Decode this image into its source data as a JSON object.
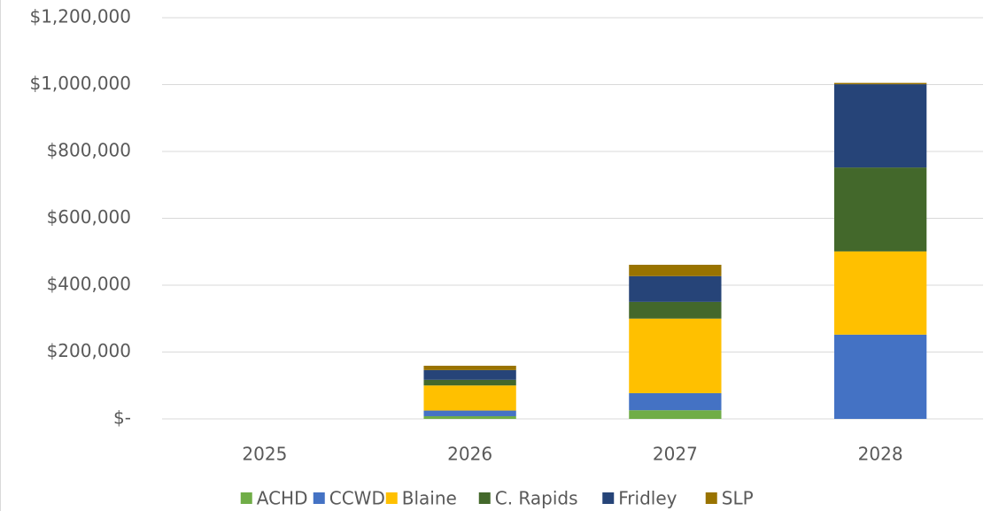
{
  "chart_data": {
    "type": "stacked_bar",
    "categories": [
      "2025",
      "2026",
      "2027",
      "2028"
    ],
    "series": [
      {
        "name": "ACHD",
        "color": "#70ad47",
        "values": [
          0,
          8000,
          26000,
          0
        ]
      },
      {
        "name": "CCWD",
        "color": "#4472c4",
        "values": [
          0,
          17000,
          51000,
          252000
        ]
      },
      {
        "name": "Blaine",
        "color": "#ffc000",
        "values": [
          0,
          75000,
          223000,
          249000
        ]
      },
      {
        "name": "C. Rapids",
        "color": "#43682b",
        "values": [
          0,
          17000,
          50000,
          251000
        ]
      },
      {
        "name": "Fridley",
        "color": "#264478",
        "values": [
          0,
          29000,
          77000,
          249000
        ]
      },
      {
        "name": "SLP",
        "color": "#997300",
        "values": [
          0,
          13000,
          34000,
          4000
        ]
      }
    ],
    "ylim": [
      0,
      1200000
    ],
    "yticks": [
      {
        "value": 0,
        "label": "$-"
      },
      {
        "value": 200000,
        "label": "$200,000"
      },
      {
        "value": 400000,
        "label": "$400,000"
      },
      {
        "value": 600000,
        "label": "$600,000"
      },
      {
        "value": 800000,
        "label": "$800,000"
      },
      {
        "value": 1000000,
        "label": "$1,000,000"
      },
      {
        "value": 1200000,
        "label": "$1,200,000"
      }
    ],
    "grid": true,
    "legend": "bottom"
  }
}
